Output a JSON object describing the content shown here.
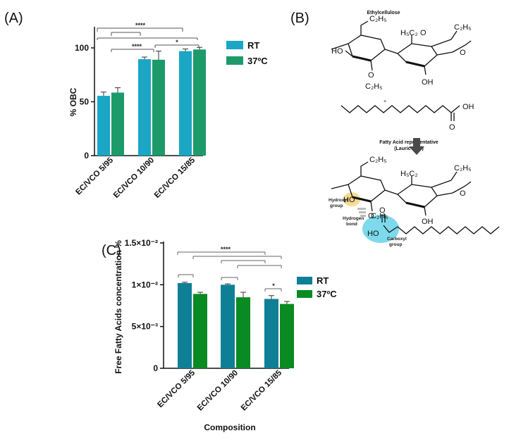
{
  "panels": {
    "a": "(A)",
    "b": "(B)",
    "c": "(C)"
  },
  "colors": {
    "rt_a": "#1aa6c4",
    "t37_a": "#1c9a6a",
    "rt_c": "#0f7f96",
    "t37_c": "#0a8a22"
  },
  "chart_data": [
    {
      "panel": "A",
      "type": "bar",
      "xlabel": "",
      "ylabel": "% OBC",
      "ylim": [
        0,
        120
      ],
      "yticks": [
        0,
        50,
        100
      ],
      "ytick_labels": [
        "0",
        "50",
        "100"
      ],
      "categories": [
        "EC/VCO 5/95",
        "EC/VCO 10/90",
        "EC/VCO 15/85"
      ],
      "series": [
        {
          "name": "RT",
          "values": [
            55.5,
            89.5,
            97
          ],
          "errors": [
            3.5,
            2,
            2
          ]
        },
        {
          "name": "37ºC",
          "values": [
            58.5,
            89,
            98.5
          ],
          "errors": [
            4.5,
            8,
            2
          ]
        }
      ],
      "legend": [
        "RT",
        "37ºC"
      ],
      "legend_position": "right",
      "significance": [
        "****",
        "****",
        "*"
      ]
    },
    {
      "panel": "C",
      "type": "bar",
      "xlabel": "Composition",
      "ylabel": "Free Fatty Acids concentration %",
      "ylim": [
        0,
        0.015
      ],
      "yticks": [
        0,
        0.005,
        0.01,
        0.015
      ],
      "ytick_labels": [
        "0",
        "5×10⁻³",
        "1×10⁻²",
        "1.5×10⁻²"
      ],
      "categories": [
        "EC/VCO 5/95",
        "EC/VCO 10/90",
        "EC/VCO 15/85"
      ],
      "series": [
        {
          "name": "RT",
          "values": [
            0.0102,
            0.01,
            0.0083
          ],
          "errors": [
            0.0001,
            0.0001,
            0.0004
          ]
        },
        {
          "name": "37ºC",
          "values": [
            0.0089,
            0.0085,
            0.0077
          ],
          "errors": [
            0.0002,
            0.0006,
            0.0003
          ]
        }
      ],
      "legend": [
        "RT",
        "37ºC"
      ],
      "legend_position": "right",
      "significance": [
        "****",
        "*"
      ]
    }
  ],
  "scheme": {
    "title": "Ethylcellulose",
    "plus": "+",
    "fatty_acid_label": "Fatty Acid representative",
    "fatty_acid_sublabel": "(Lauric acid)",
    "oh": "OH",
    "ho": "HO",
    "o": "O",
    "c2h5": "C₂H₅",
    "h5c2": "H₅C₂",
    "hydroxyl_label": "Hydroxyl",
    "group_label": "group",
    "hbond_label": "Hydrogen",
    "bond_label": "bond",
    "carboxyl_label": "Carboxyl"
  }
}
